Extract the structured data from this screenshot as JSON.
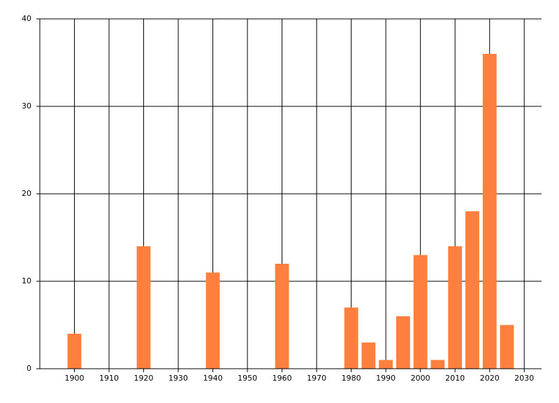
{
  "chart_data": {
    "type": "bar",
    "x": [
      1900,
      1920,
      1940,
      1960,
      1980,
      1985,
      1990,
      1995,
      2000,
      2005,
      2010,
      2015,
      2020,
      2025
    ],
    "values": [
      4,
      14,
      11,
      12,
      7,
      3,
      1,
      6,
      13,
      1,
      14,
      18,
      36,
      5
    ],
    "color": "#ff7f3f",
    "xlim": [
      1890,
      2035
    ],
    "xticks": [
      1900,
      1910,
      1920,
      1930,
      1940,
      1950,
      1960,
      1970,
      1980,
      1990,
      2000,
      2010,
      2020,
      2030
    ],
    "ylim": [
      0,
      40
    ],
    "yticks": [
      0,
      10,
      20,
      30,
      40
    ],
    "grid": true
  }
}
